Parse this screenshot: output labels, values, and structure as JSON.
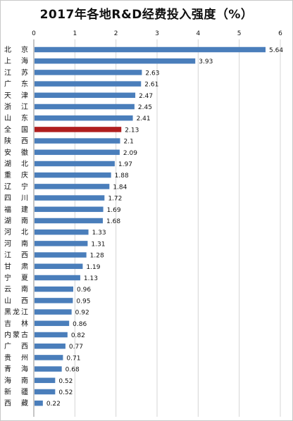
{
  "chart_data": {
    "type": "bar",
    "orientation": "horizontal",
    "title": "2017年各地R&D经费投入强度（%）",
    "xlabel": "",
    "ylabel": "",
    "xlim": [
      0,
      6
    ],
    "ticks": [
      0,
      1,
      2,
      3,
      4,
      5,
      6
    ],
    "grid": true,
    "categories": [
      "北 京",
      "上 海",
      "江 苏",
      "广 东",
      "天 津",
      "浙 江",
      "山 东",
      "全 国",
      "陕 西",
      "安 徽",
      "湖 北",
      "重 庆",
      "辽 宁",
      "四 川",
      "福 建",
      "湖 南",
      "河 北",
      "河 南",
      "江 西",
      "甘 肃",
      "宁 夏",
      "云 南",
      "山 西",
      "黑龙江",
      "吉 林",
      "内蒙古",
      "广 西",
      "贵 州",
      "青 海",
      "海 南",
      "新 疆",
      "西 藏"
    ],
    "values": [
      5.64,
      3.93,
      2.63,
      2.61,
      2.47,
      2.45,
      2.41,
      2.13,
      2.1,
      2.09,
      1.97,
      1.88,
      1.84,
      1.72,
      1.69,
      1.68,
      1.33,
      1.31,
      1.28,
      1.19,
      1.13,
      0.96,
      0.95,
      0.92,
      0.86,
      0.82,
      0.77,
      0.71,
      0.68,
      0.52,
      0.52,
      0.22
    ],
    "value_labels": [
      "5.64",
      "3.93",
      "2.63",
      "2.61",
      "2.47",
      "2.45",
      "2.41",
      "2.13",
      "2.1",
      "2.09",
      "1.97",
      "1.88",
      "1.84",
      "1.72",
      "1.69",
      "1.68",
      "1.33",
      "1.31",
      "1.28",
      "1.19",
      "1.13",
      "0.96",
      "0.95",
      "0.92",
      "0.86",
      "0.82",
      "0.77",
      "0.71",
      "0.68",
      "0.52",
      "0.52",
      "0.22"
    ],
    "highlight_index": 7,
    "colors": {
      "bar": "#4a7ebb",
      "highlight": "#b01e1e",
      "grid": "#d4d4d4",
      "axis": "#8c8c8c"
    }
  }
}
